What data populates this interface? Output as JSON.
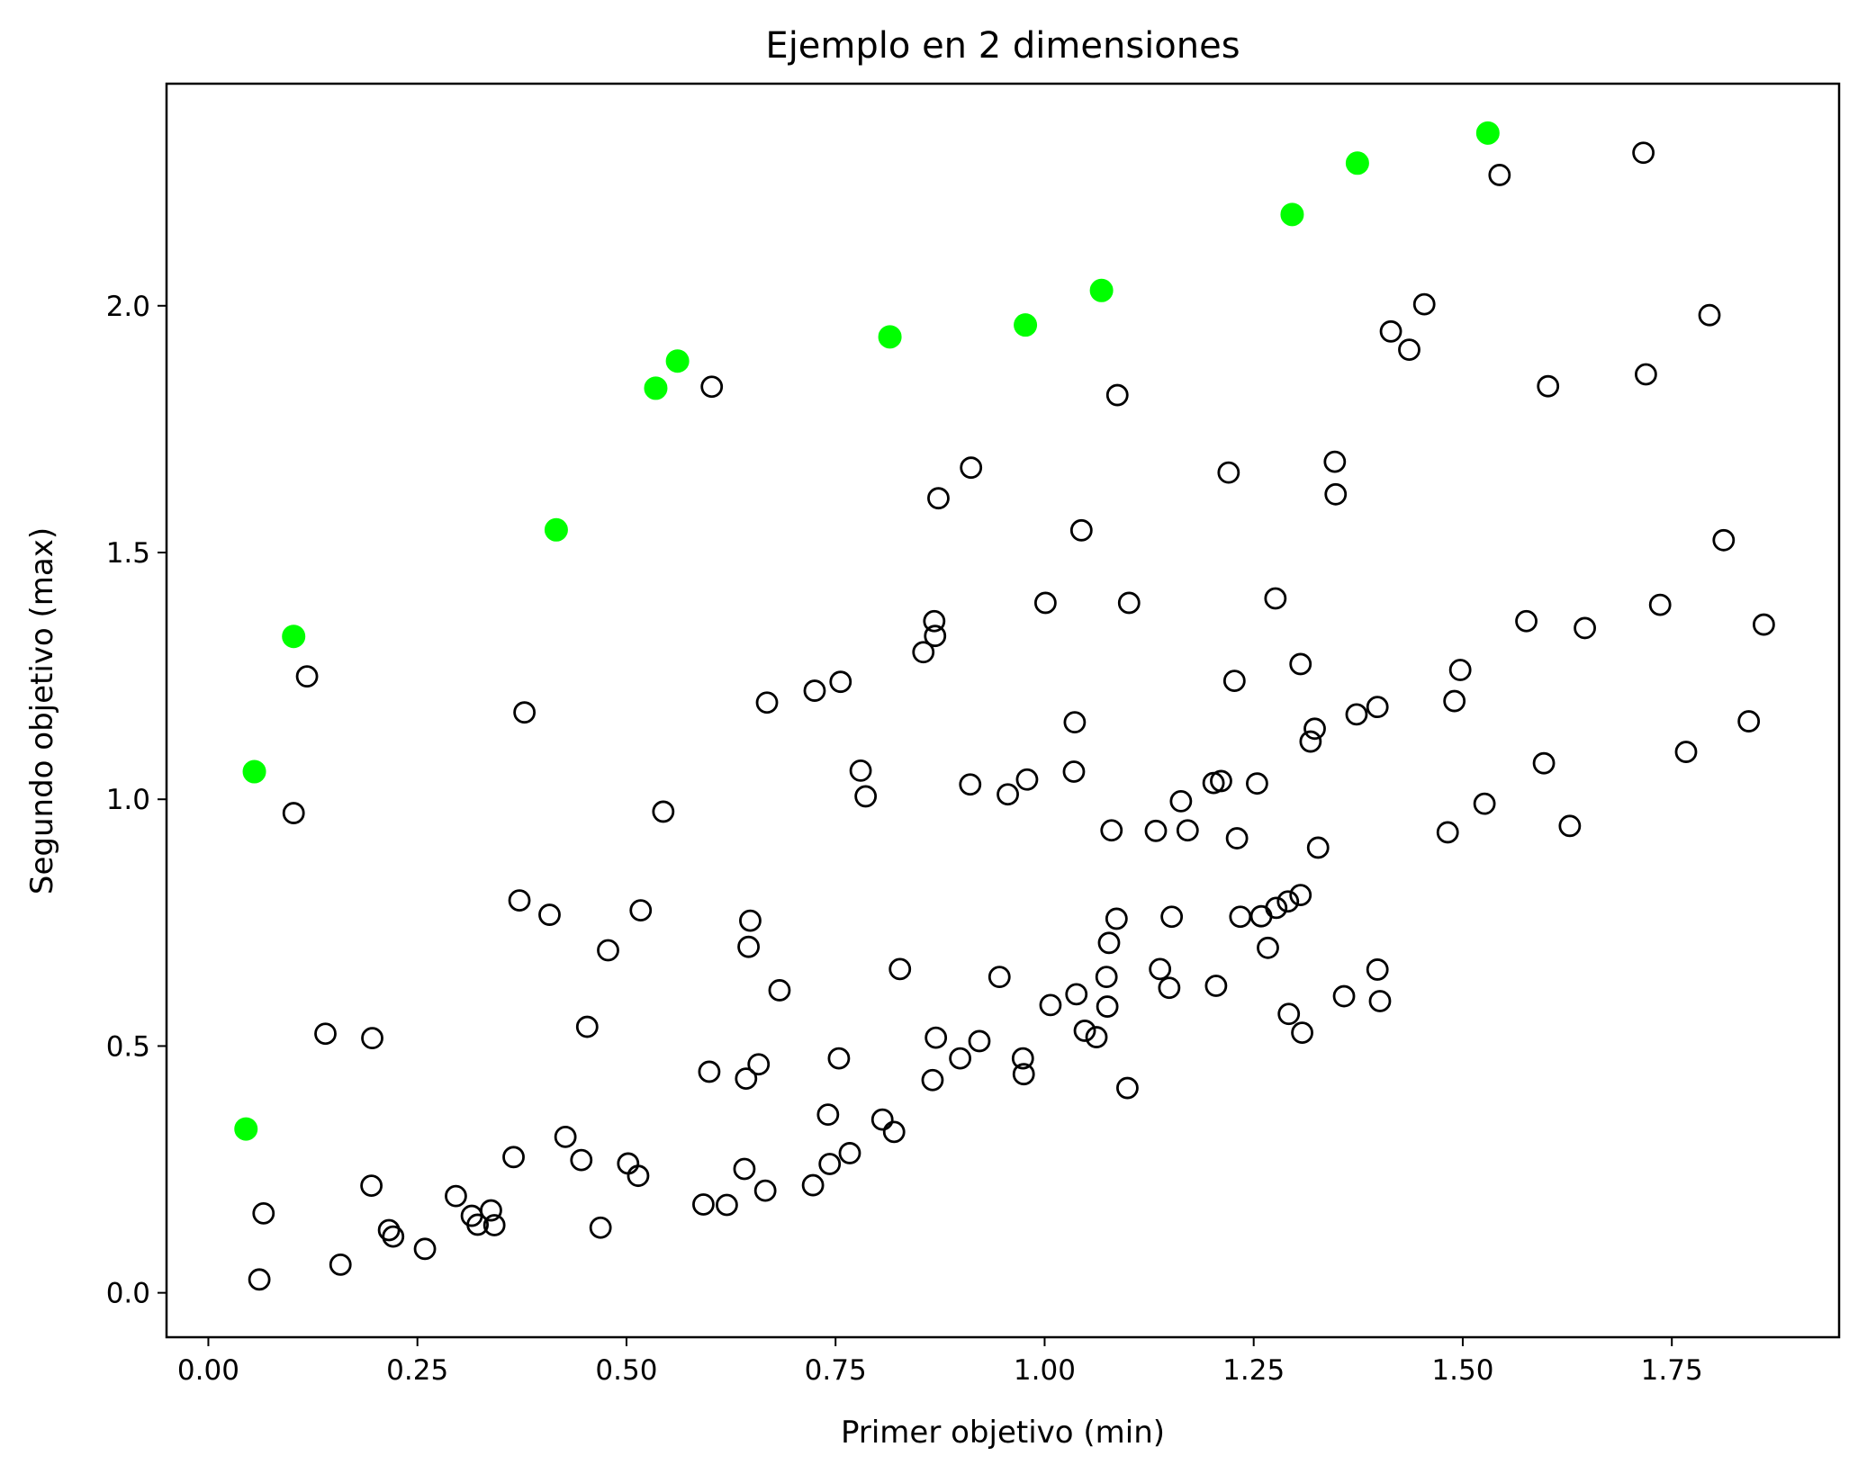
{
  "chart_data": {
    "type": "scatter",
    "title": "Ejemplo en 2 dimensiones",
    "xlabel": "Primer objetivo (min)",
    "ylabel": "Segundo objetivo (max)",
    "xlim": [
      -0.05,
      1.95
    ],
    "ylim": [
      -0.09,
      2.45
    ],
    "xticks": [
      0.0,
      0.25,
      0.5,
      0.75,
      1.0,
      1.25,
      1.5,
      1.75
    ],
    "xtick_labels": [
      "0.00",
      "0.25",
      "0.50",
      "0.75",
      "1.00",
      "1.25",
      "1.50",
      "1.75"
    ],
    "yticks": [
      0.0,
      0.5,
      1.0,
      1.5,
      2.0
    ],
    "ytick_labels": [
      "0.0",
      "0.5",
      "1.0",
      "1.5",
      "2.0"
    ],
    "grid": false,
    "legend": false,
    "series": [
      {
        "marker": "hollow circle",
        "color": "#000000",
        "points": [
          [
            0.061,
            0.027
          ],
          [
            0.066,
            0.161
          ],
          [
            0.102,
            0.972
          ],
          [
            0.118,
            1.249
          ],
          [
            0.14,
            0.525
          ],
          [
            0.158,
            0.057
          ],
          [
            0.195,
            0.217
          ],
          [
            0.196,
            0.516
          ],
          [
            0.216,
            0.127
          ],
          [
            0.221,
            0.114
          ],
          [
            0.259,
            0.089
          ],
          [
            0.296,
            0.196
          ],
          [
            0.315,
            0.156
          ],
          [
            0.322,
            0.138
          ],
          [
            0.338,
            0.167
          ],
          [
            0.342,
            0.137
          ],
          [
            0.365,
            0.275
          ],
          [
            0.372,
            0.795
          ],
          [
            0.378,
            1.176
          ],
          [
            0.408,
            0.766
          ],
          [
            0.427,
            0.316
          ],
          [
            0.446,
            0.269
          ],
          [
            0.453,
            0.539
          ],
          [
            0.469,
            0.132
          ],
          [
            0.478,
            0.694
          ],
          [
            0.502,
            0.262
          ],
          [
            0.514,
            0.237
          ],
          [
            0.517,
            0.775
          ],
          [
            0.544,
            0.975
          ],
          [
            0.592,
            0.179
          ],
          [
            0.599,
            0.448
          ],
          [
            0.602,
            1.836
          ],
          [
            0.62,
            0.178
          ],
          [
            0.641,
            0.251
          ],
          [
            0.643,
            0.434
          ],
          [
            0.646,
            0.701
          ],
          [
            0.648,
            0.754
          ],
          [
            0.658,
            0.463
          ],
          [
            0.666,
            0.207
          ],
          [
            0.668,
            1.196
          ],
          [
            0.683,
            0.613
          ],
          [
            0.723,
            0.218
          ],
          [
            0.725,
            1.22
          ],
          [
            0.741,
            0.361
          ],
          [
            0.743,
            0.261
          ],
          [
            0.754,
            0.475
          ],
          [
            0.756,
            1.238
          ],
          [
            0.767,
            0.283
          ],
          [
            0.78,
            1.058
          ],
          [
            0.786,
            1.006
          ],
          [
            0.806,
            0.351
          ],
          [
            0.82,
            0.326
          ],
          [
            0.827,
            0.656
          ],
          [
            0.855,
            1.298
          ],
          [
            0.866,
            0.431
          ],
          [
            0.868,
            1.361
          ],
          [
            0.869,
            1.331
          ],
          [
            0.87,
            0.517
          ],
          [
            0.873,
            1.61
          ],
          [
            0.899,
            0.475
          ],
          [
            0.911,
            1.03
          ],
          [
            0.912,
            1.672
          ],
          [
            0.922,
            0.51
          ],
          [
            0.946,
            0.64
          ],
          [
            0.956,
            1.01
          ],
          [
            0.974,
            0.475
          ],
          [
            0.975,
            0.443
          ],
          [
            0.979,
            1.04
          ],
          [
            1.001,
            1.398
          ],
          [
            1.007,
            0.583
          ],
          [
            1.035,
            1.056
          ],
          [
            1.036,
            1.156
          ],
          [
            1.038,
            0.605
          ],
          [
            1.044,
            1.545
          ],
          [
            1.048,
            0.531
          ],
          [
            1.062,
            0.518
          ],
          [
            1.074,
            0.64
          ],
          [
            1.075,
            0.58
          ],
          [
            1.077,
            0.709
          ],
          [
            1.08,
            0.937
          ],
          [
            1.086,
            0.758
          ],
          [
            1.087,
            1.819
          ],
          [
            1.099,
            0.415
          ],
          [
            1.101,
            1.398
          ],
          [
            1.133,
            0.936
          ],
          [
            1.138,
            0.656
          ],
          [
            1.149,
            0.618
          ],
          [
            1.152,
            0.762
          ],
          [
            1.163,
            0.996
          ],
          [
            1.171,
            0.937
          ],
          [
            1.202,
            1.033
          ],
          [
            1.205,
            0.622
          ],
          [
            1.211,
            1.037
          ],
          [
            1.22,
            1.662
          ],
          [
            1.227,
            1.24
          ],
          [
            1.23,
            0.921
          ],
          [
            1.234,
            0.762
          ],
          [
            1.254,
            1.032
          ],
          [
            1.259,
            0.763
          ],
          [
            1.267,
            0.699
          ],
          [
            1.276,
            1.407
          ],
          [
            1.277,
            0.78
          ],
          [
            1.291,
            0.793
          ],
          [
            1.292,
            0.565
          ],
          [
            1.306,
            0.806
          ],
          [
            1.306,
            1.274
          ],
          [
            1.308,
            0.527
          ],
          [
            1.318,
            1.117
          ],
          [
            1.323,
            1.143
          ],
          [
            1.327,
            0.902
          ],
          [
            1.347,
            1.684
          ],
          [
            1.348,
            1.618
          ],
          [
            1.358,
            0.601
          ],
          [
            1.373,
            1.172
          ],
          [
            1.398,
            0.655
          ],
          [
            1.398,
            1.187
          ],
          [
            1.401,
            0.591
          ],
          [
            1.414,
            1.948
          ],
          [
            1.436,
            1.911
          ],
          [
            1.454,
            2.003
          ],
          [
            1.482,
            0.933
          ],
          [
            1.49,
            1.199
          ],
          [
            1.497,
            1.262
          ],
          [
            1.526,
            0.991
          ],
          [
            1.544,
            2.265
          ],
          [
            1.576,
            1.361
          ],
          [
            1.597,
            1.073
          ],
          [
            1.602,
            1.837
          ],
          [
            1.628,
            0.946
          ],
          [
            1.646,
            1.347
          ],
          [
            1.716,
            2.31
          ],
          [
            1.719,
            1.861
          ],
          [
            1.736,
            1.394
          ],
          [
            1.767,
            1.096
          ],
          [
            1.795,
            1.981
          ],
          [
            1.812,
            1.525
          ],
          [
            1.842,
            1.158
          ],
          [
            1.86,
            1.354
          ]
        ]
      },
      {
        "marker": "filled circle",
        "color": "#00ff00",
        "points": [
          [
            0.045,
            0.332
          ],
          [
            0.055,
            1.056
          ],
          [
            0.102,
            1.33
          ],
          [
            0.416,
            1.546
          ],
          [
            0.535,
            1.833
          ],
          [
            0.561,
            1.888
          ],
          [
            0.815,
            1.937
          ],
          [
            0.977,
            1.961
          ],
          [
            1.068,
            2.031
          ],
          [
            1.296,
            2.185
          ],
          [
            1.374,
            2.289
          ],
          [
            1.53,
            2.35
          ]
        ]
      }
    ]
  }
}
